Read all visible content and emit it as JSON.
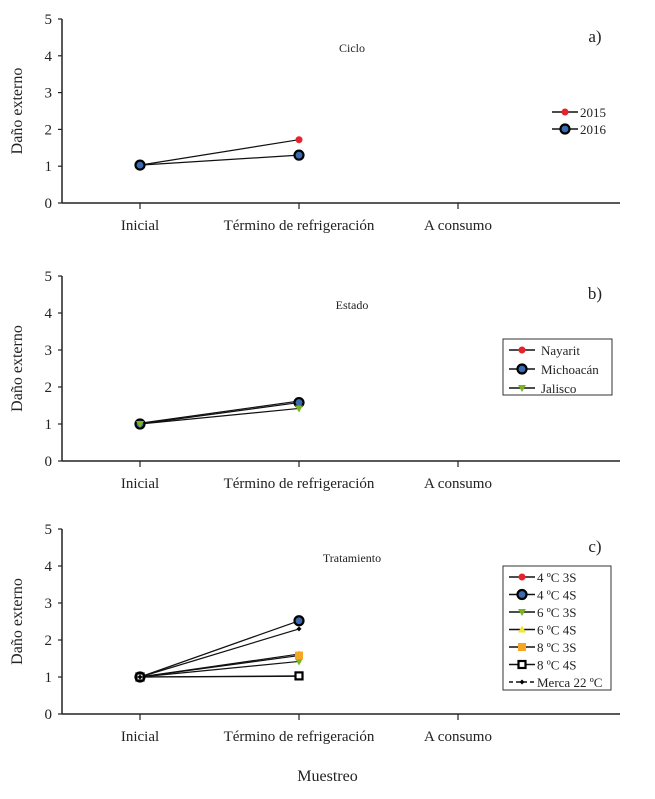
{
  "xlabel_common": "Muestreo",
  "chart_data": [
    {
      "type": "line",
      "panel_label": "a)",
      "title": "Ciclo",
      "ylabel": "Daño externo",
      "ylim": [
        0,
        5
      ],
      "yticks": [
        "0",
        "1",
        "2",
        "3",
        "4",
        "5"
      ],
      "categories": [
        "Inicial",
        "Término de refrigeración",
        "A consumo"
      ],
      "legend": "right",
      "legend_box": false,
      "series": [
        {
          "name": "2015",
          "marker": "circle-small",
          "color": "#e8212e",
          "values": [
            1.03,
            1.72,
            null
          ]
        },
        {
          "name": "2016",
          "marker": "circle-ring",
          "color": "#3a6bb0",
          "values": [
            1.03,
            1.3,
            null
          ]
        }
      ]
    },
    {
      "type": "line",
      "panel_label": "b)",
      "title": "Estado",
      "ylabel": "Daño externo",
      "ylim": [
        0,
        5
      ],
      "yticks": [
        "0",
        "1",
        "2",
        "3",
        "4",
        "5"
      ],
      "categories": [
        "Inicial",
        "Término de refrigeración",
        "A consumo"
      ],
      "legend": "right",
      "legend_box": true,
      "series": [
        {
          "name": "Nayarit",
          "marker": "circle-small",
          "color": "#e8212e",
          "values": [
            1.02,
            1.62,
            null
          ]
        },
        {
          "name": "Michoacán",
          "marker": "circle-ring",
          "color": "#3a6bb0",
          "values": [
            1.0,
            1.58,
            null
          ]
        },
        {
          "name": "Jalisco",
          "marker": "triangle-down",
          "color": "#7ab51d",
          "values": [
            1.0,
            1.42,
            null
          ]
        }
      ]
    },
    {
      "type": "line",
      "panel_label": "c)",
      "title": "Tratamiento",
      "ylabel": "Daño externo",
      "ylim": [
        0,
        5
      ],
      "yticks": [
        "0",
        "1",
        "2",
        "3",
        "4",
        "5"
      ],
      "categories": [
        "Inicial",
        "Término de refrigeración",
        "A consumo"
      ],
      "legend": "right",
      "legend_box": true,
      "series": [
        {
          "name": "4 ºC 3S",
          "marker": "circle-small",
          "color": "#e8212e",
          "values": [
            1.0,
            1.02,
            null
          ]
        },
        {
          "name": "4 ºC 4S",
          "marker": "circle-ring",
          "color": "#3a6bb0",
          "values": [
            1.0,
            2.52,
            null
          ]
        },
        {
          "name": "6 ºC 3S",
          "marker": "triangle-down",
          "color": "#7ab51d",
          "values": [
            1.0,
            1.42,
            null
          ]
        },
        {
          "name": "6 ºC 4S",
          "marker": "triangle-up",
          "color": "#f2e632",
          "values": [
            1.0,
            1.62,
            null
          ]
        },
        {
          "name": "8 ºC 3S",
          "marker": "square",
          "color": "#f5a623",
          "values": [
            1.0,
            1.58,
            null
          ]
        },
        {
          "name": "8 ºC 4S",
          "marker": "square-open",
          "color": "#000000",
          "values": [
            1.0,
            1.03,
            null
          ]
        },
        {
          "name": "Merca 22 ºC",
          "marker": "diamond-small",
          "color": "#000000",
          "dashed": true,
          "values": [
            1.0,
            2.3,
            null
          ]
        }
      ]
    }
  ]
}
